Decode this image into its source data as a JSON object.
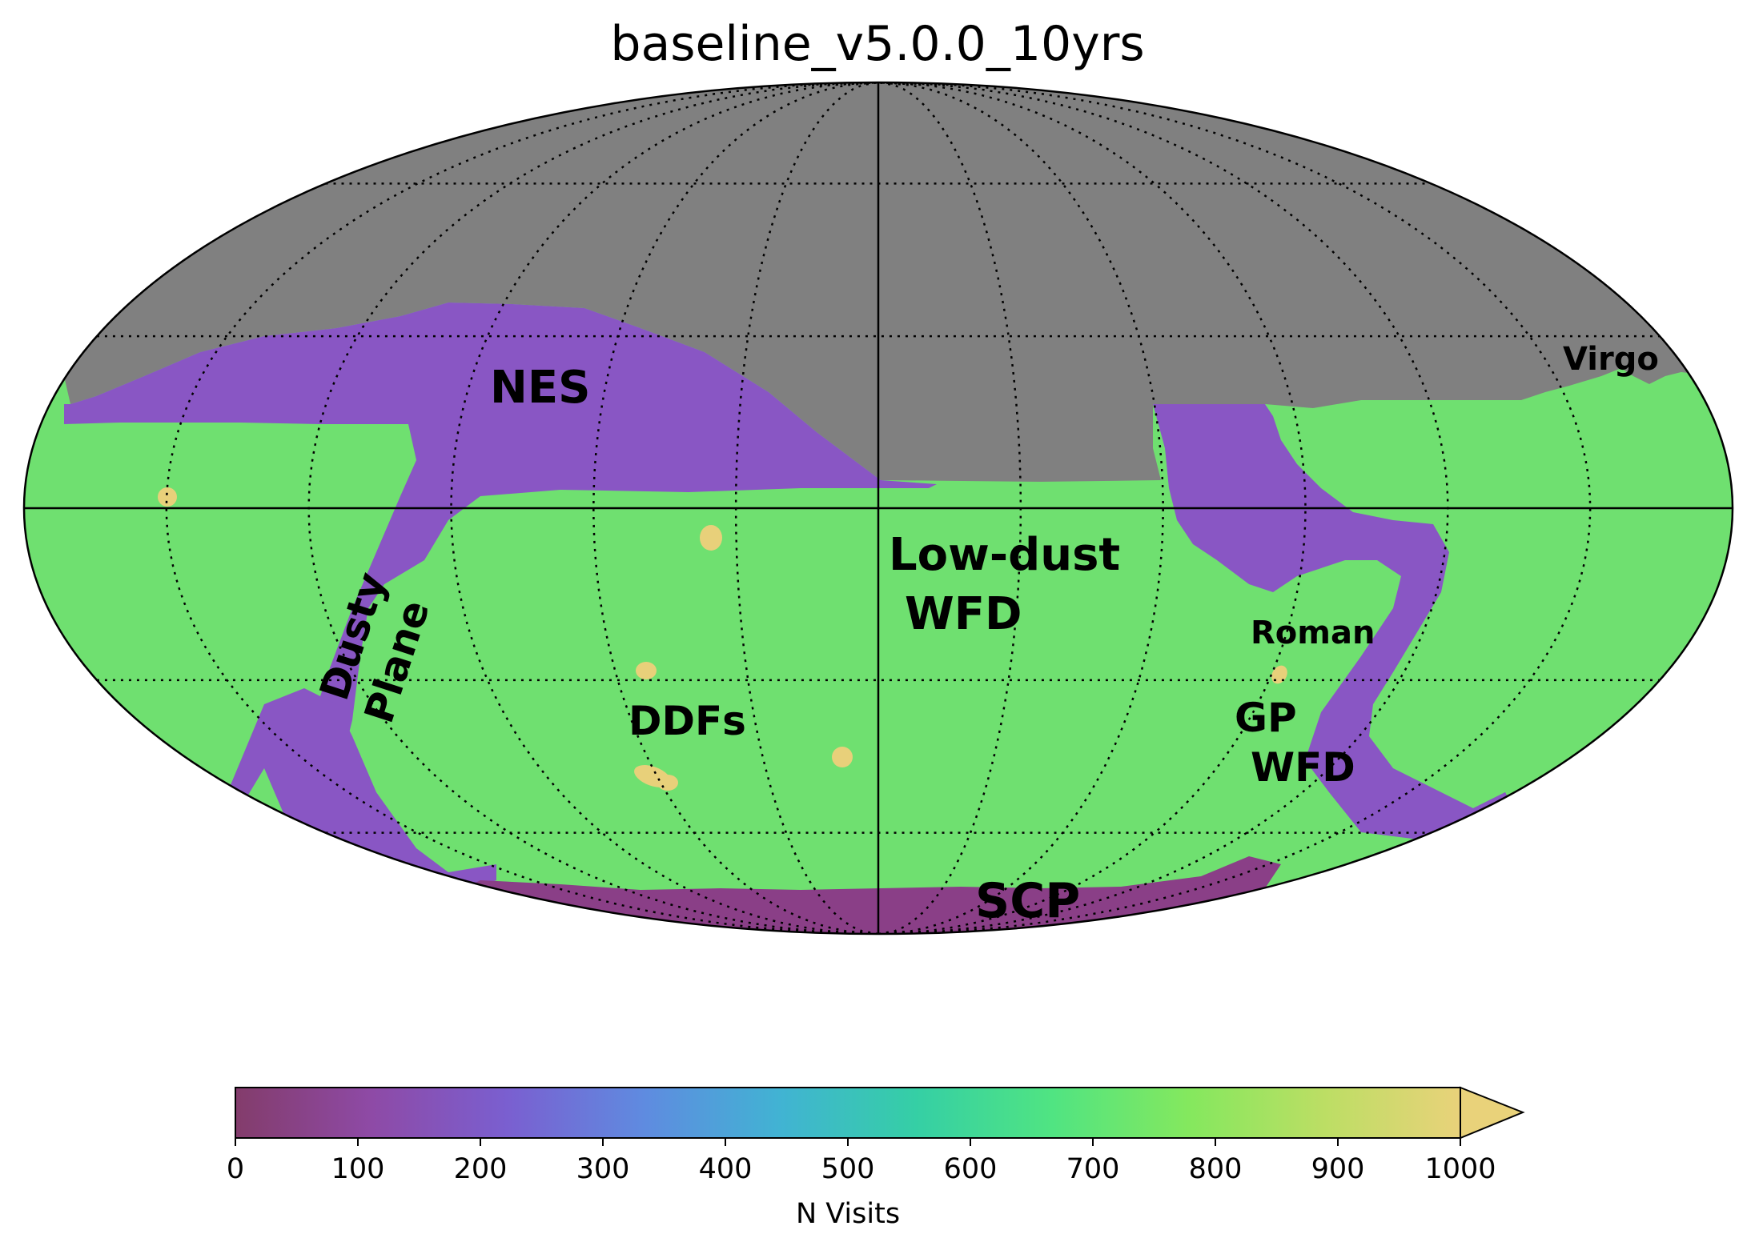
{
  "chart_data": {
    "type": "heatmap",
    "projection": "mollweide",
    "title": "baseline_v5.0.0_10yrs",
    "colorbar": {
      "label": "N Visits",
      "min": 0,
      "max": 1000,
      "extend": "max",
      "ticks": [
        "0",
        "100",
        "200",
        "300",
        "400",
        "500",
        "600",
        "700",
        "800",
        "900",
        "1000"
      ],
      "colormap": [
        "#833c6b",
        "#8e4aa6",
        "#7a5fd0",
        "#5f8be0",
        "#41b3d3",
        "#35cfa5",
        "#50e482",
        "#84e85e",
        "#bcde64",
        "#e9d27a"
      ]
    },
    "colors": {
      "no_coverage": "#808080",
      "wfd": "#6fe070",
      "low_coverage": "#8956c4",
      "ddf": "#e8d07a",
      "scp_dark": "#8a3f87"
    },
    "regions": [
      {
        "label": "NES",
        "n_visits_approx": 220
      },
      {
        "label": "Dusty\nPlane",
        "n_visits_approx": 240
      },
      {
        "label": "Low-dust\nWFD",
        "n_visits_approx": 780
      },
      {
        "label": "DDFs",
        "n_visits_approx": 1000
      },
      {
        "label": "Roman",
        "n_visits_approx": 1000
      },
      {
        "label": "GP\nWFD",
        "n_visits_approx": 800
      },
      {
        "label": "SCP",
        "n_visits_approx": 180
      },
      {
        "label": "Virgo",
        "n_visits_approx": 800
      }
    ],
    "grid": true
  }
}
